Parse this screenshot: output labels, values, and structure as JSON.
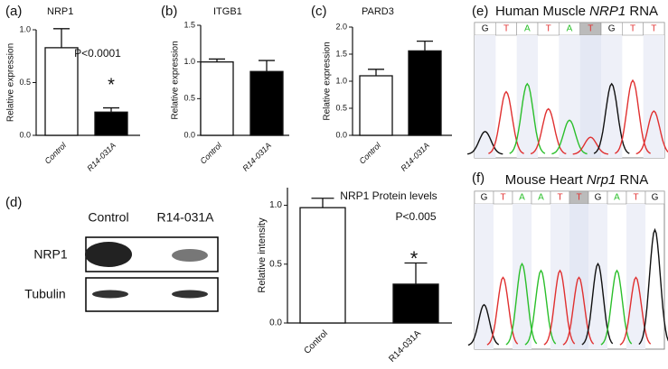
{
  "panel_labels": [
    "(a)",
    "(b)",
    "(c)",
    "(d)",
    "(e)",
    "(f)"
  ],
  "chart_data": [
    {
      "type": "bar",
      "title": "NRP1",
      "y_label": "Relative expression",
      "categories": [
        "Control",
        "R14-031A"
      ],
      "values": [
        0.83,
        0.22
      ],
      "errors": [
        0.18,
        0.04
      ],
      "colors": [
        "#ffffff",
        "#000000"
      ],
      "ylim": [
        0,
        1.0
      ],
      "yticks": [
        {
          "value": 0,
          "label": "0.0"
        },
        {
          "value": 0.5,
          "label": "0.5"
        },
        {
          "value": 1.0,
          "label": "1.0"
        }
      ],
      "annotations": [
        "P<0.0001",
        "*"
      ]
    },
    {
      "type": "bar",
      "title": "ITGB1",
      "y_label": "Relative expression",
      "categories": [
        "Control",
        "R14-031A"
      ],
      "values": [
        1.0,
        0.87
      ],
      "errors": [
        0.04,
        0.15
      ],
      "colors": [
        "#ffffff",
        "#000000"
      ],
      "ylim": [
        0,
        1.5
      ],
      "yticks": [
        {
          "value": 0,
          "label": "0.0"
        },
        {
          "value": 0.5,
          "label": "0.5"
        },
        {
          "value": 1.0,
          "label": "1.0"
        },
        {
          "value": 1.5,
          "label": "1.5"
        }
      ],
      "annotations": []
    },
    {
      "type": "bar",
      "title": "PARD3",
      "y_label": "Relative expression",
      "categories": [
        "Control",
        "R14-031A"
      ],
      "values": [
        1.1,
        1.56
      ],
      "errors": [
        0.12,
        0.18
      ],
      "colors": [
        "#ffffff",
        "#000000"
      ],
      "ylim": [
        0,
        2.0
      ],
      "yticks": [
        {
          "value": 0,
          "label": "0.0"
        },
        {
          "value": 0.5,
          "label": "0.5"
        },
        {
          "value": 1.0,
          "label": "1.0"
        },
        {
          "value": 1.5,
          "label": "1.5"
        },
        {
          "value": 2.0,
          "label": "2.0"
        }
      ],
      "annotations": []
    },
    {
      "type": "bar",
      "title": "NRP1 Protein levels",
      "y_label": "Relative intensity",
      "categories": [
        "Control",
        "R14-031A"
      ],
      "values": [
        0.98,
        0.33
      ],
      "errors": [
        0.08,
        0.18
      ],
      "colors": [
        "#ffffff",
        "#000000"
      ],
      "ylim": [
        0,
        1.15
      ],
      "yticks": [
        {
          "value": 0,
          "label": "0.0"
        },
        {
          "value": 0.5,
          "label": "0.5"
        },
        {
          "value": 1.0,
          "label": "1.0"
        }
      ],
      "annotations": [
        "P<0.005",
        "*"
      ]
    }
  ],
  "blot": {
    "lanes": [
      "Control",
      "R14-031A"
    ],
    "rows": [
      "NRP1",
      "Tubulin"
    ]
  },
  "chromatograms": [
    {
      "title": [
        "Human Muscle ",
        "NRP1",
        " RNA"
      ],
      "bases": [
        "G",
        "T",
        "A",
        "T",
        "A",
        "T",
        "G",
        "T",
        "T"
      ],
      "highlight": 5
    },
    {
      "title": [
        "Mouse Heart ",
        "Nrp1",
        " RNA"
      ],
      "bases": [
        "G",
        "T",
        "A",
        "A",
        "T",
        "T",
        "G",
        "A",
        "T",
        "G"
      ],
      "highlight": 5
    }
  ]
}
